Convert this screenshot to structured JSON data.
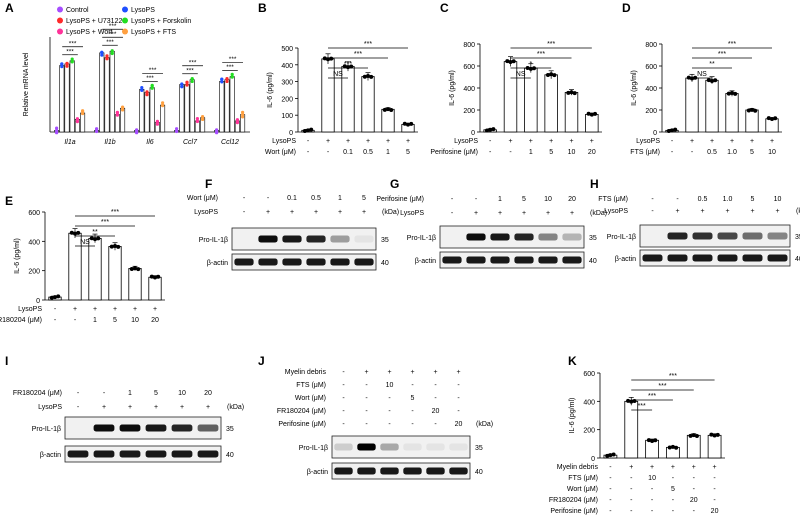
{
  "figure": {
    "panel_letters": [
      "A",
      "B",
      "C",
      "D",
      "E",
      "F",
      "G",
      "H",
      "I",
      "J",
      "K"
    ],
    "colors": {
      "black": "#000000",
      "bar_fill": "#ffffff"
    }
  },
  "panel_A": {
    "legend": [
      {
        "label": "Control",
        "color": "#a64dff"
      },
      {
        "label": "LysoPS",
        "color": "#1f4fff"
      },
      {
        "label": "LysoPS + U73122",
        "color": "#ff2a2a"
      },
      {
        "label": "LysoPS + Forskolin",
        "color": "#22dd22"
      },
      {
        "label": "LysoPS + Wort",
        "color": "#ff3399"
      },
      {
        "label": "LysoPS + FTS",
        "color": "#ffa040"
      }
    ],
    "sig": "***"
  },
  "blots": {
    "F": {
      "rows": [
        {
          "label": "Wort (μM)",
          "values": [
            "-",
            "-",
            "0.1",
            "0.5",
            "1",
            "5"
          ]
        },
        {
          "label": "LysoPS",
          "values": [
            "-",
            "+",
            "+",
            "+",
            "+",
            "+"
          ]
        }
      ],
      "bands": [
        "Pro-IL-1β",
        "β-actin"
      ],
      "kda_header": "(kDa)",
      "markers": [
        "35",
        "40"
      ]
    },
    "G": {
      "rows": [
        {
          "label": "Perifosine (μM)",
          "values": [
            "-",
            "-",
            "1",
            "5",
            "10",
            "20"
          ]
        },
        {
          "label": "LysoPS",
          "values": [
            "-",
            "+",
            "+",
            "+",
            "+",
            "+"
          ]
        }
      ],
      "bands": [
        "Pro-IL-1β",
        "β-actin"
      ],
      "kda_header": "(kDa)",
      "markers": [
        "35",
        "40"
      ]
    },
    "H": {
      "rows": [
        {
          "label": "FTS (μM)",
          "values": [
            "-",
            "-",
            "0.5",
            "1.0",
            "5",
            "10"
          ]
        },
        {
          "label": "LysoPS",
          "values": [
            "-",
            "+",
            "+",
            "+",
            "+",
            "+"
          ]
        }
      ],
      "bands": [
        "Pro-IL-1β",
        "β-actin"
      ],
      "kda_header": "(kDa)",
      "markers": [
        "35",
        "40"
      ]
    },
    "I": {
      "rows": [
        {
          "label": "FR180204 (μM)",
          "values": [
            "-",
            "-",
            "1",
            "5",
            "10",
            "20"
          ]
        },
        {
          "label": "LysoPS",
          "values": [
            "-",
            "+",
            "+",
            "+",
            "+",
            "+"
          ]
        }
      ],
      "bands": [
        "Pro-IL-1β",
        "β-actin"
      ],
      "kda_header": "(kDa)",
      "markers": [
        "35",
        "40"
      ]
    },
    "J": {
      "rows": [
        {
          "label": "Myelin debris",
          "values": [
            "-",
            "+",
            "+",
            "+",
            "+",
            "+"
          ]
        },
        {
          "label": "FTS (μM)",
          "values": [
            "-",
            "-",
            "10",
            "-",
            "-",
            "-"
          ]
        },
        {
          "label": "Wort (μM)",
          "values": [
            "-",
            "-",
            "-",
            "5",
            "-",
            "-"
          ]
        },
        {
          "label": "FR180204 (μM)",
          "values": [
            "-",
            "-",
            "-",
            "-",
            "20",
            "-"
          ]
        },
        {
          "label": "Perifosine (μM)",
          "values": [
            "-",
            "-",
            "-",
            "-",
            "-",
            "20"
          ]
        }
      ],
      "bands": [
        "Pro-IL-1β",
        "β-actin"
      ],
      "kda_header": "(kDa)",
      "markers": [
        "35",
        "40"
      ]
    }
  },
  "chart_data": [
    {
      "panel": "A",
      "type": "bar",
      "ylabel": "Relative mRNA level",
      "categories": [
        "Il1a",
        "Il1b",
        "Il6",
        "Ccl7",
        "Ccl12"
      ],
      "series": [
        {
          "name": "Control",
          "values": [
            1,
            1,
            1,
            1,
            1
          ]
        },
        {
          "name": "LysoPS",
          "values": [
            42,
            50,
            27,
            30,
            32
          ]
        },
        {
          "name": "LysoPS + U73122",
          "values": [
            43,
            47,
            25,
            30,
            33
          ]
        },
        {
          "name": "LysoPS + Forskolin",
          "values": [
            45,
            51,
            28,
            33,
            35
          ]
        },
        {
          "name": "LysoPS + Wort",
          "values": [
            8,
            11,
            6,
            7,
            7
          ]
        },
        {
          "name": "LysoPS + FTS",
          "values": [
            12,
            15,
            17,
            9,
            11
          ]
        }
      ],
      "significance": [
        {
          "category": "Il1a",
          "labels": [
            "***",
            "***"
          ]
        },
        {
          "category": "Il1b",
          "labels": [
            "***",
            "***",
            "***"
          ]
        },
        {
          "category": "Il6",
          "labels": [
            "***",
            "***"
          ]
        },
        {
          "category": "Ccl7",
          "labels": [
            "***",
            "***"
          ]
        },
        {
          "category": "Ccl12",
          "labels": [
            "***",
            "***"
          ]
        }
      ]
    },
    {
      "panel": "B",
      "type": "bar",
      "ylabel": "IL-6 (pg/ml)",
      "ylim": [
        0,
        500
      ],
      "yticks": [
        0,
        100,
        200,
        300,
        400,
        500
      ],
      "condition_rows": [
        {
          "label": "LysoPS",
          "values": [
            "-",
            "+",
            "+",
            "+",
            "+",
            "+"
          ]
        },
        {
          "label": "Wort (μM)",
          "values": [
            "-",
            "-",
            "0.1",
            "0.5",
            "1",
            "5"
          ]
        }
      ],
      "values": [
        10,
        435,
        390,
        330,
        135,
        45
      ],
      "significance": [
        {
          "from": 1,
          "to": 2,
          "label": "NS"
        },
        {
          "from": 1,
          "to": 3,
          "label": "***"
        },
        {
          "from": 1,
          "to": 4,
          "label": "***"
        },
        {
          "from": 1,
          "to": 5,
          "label": "***"
        }
      ]
    },
    {
      "panel": "C",
      "type": "bar",
      "ylabel": "IL-6 (pg/ml)",
      "ylim": [
        0,
        800
      ],
      "yticks": [
        0,
        200,
        400,
        600,
        800
      ],
      "condition_rows": [
        {
          "label": "LysoPS",
          "values": [
            "-",
            "+",
            "+",
            "+",
            "+",
            "+"
          ]
        },
        {
          "label": "Perifosine (μM)",
          "values": [
            "-",
            "-",
            "1",
            "5",
            "10",
            "20"
          ]
        }
      ],
      "values": [
        20,
        640,
        580,
        520,
        360,
        160
      ],
      "significance": [
        {
          "from": 1,
          "to": 2,
          "label": "NS"
        },
        {
          "from": 1,
          "to": 3,
          "label": "*"
        },
        {
          "from": 1,
          "to": 4,
          "label": "***"
        },
        {
          "from": 1,
          "to": 5,
          "label": "***"
        }
      ]
    },
    {
      "panel": "D",
      "type": "bar",
      "ylabel": "IL-6 (pg/ml)",
      "ylim": [
        0,
        800
      ],
      "yticks": [
        0,
        200,
        400,
        600,
        800
      ],
      "condition_rows": [
        {
          "label": "LysoPS",
          "values": [
            "-",
            "+",
            "+",
            "+",
            "+",
            "+"
          ]
        },
        {
          "label": "FTS (μM)",
          "values": [
            "-",
            "-",
            "0.5",
            "1.0",
            "5",
            "10"
          ]
        }
      ],
      "values": [
        15,
        490,
        470,
        350,
        200,
        120
      ],
      "significance": [
        {
          "from": 1,
          "to": 2,
          "label": "NS"
        },
        {
          "from": 1,
          "to": 3,
          "label": "**"
        },
        {
          "from": 1,
          "to": 4,
          "label": "***"
        },
        {
          "from": 1,
          "to": 5,
          "label": "***"
        }
      ]
    },
    {
      "panel": "E",
      "type": "bar",
      "ylabel": "IL-6 (pg/ml)",
      "ylim": [
        0,
        600
      ],
      "yticks": [
        0,
        200,
        400,
        600
      ],
      "condition_rows": [
        {
          "label": "LysoPS",
          "values": [
            "-",
            "+",
            "+",
            "+",
            "+",
            "+"
          ]
        },
        {
          "label": "FR180204 (μM)",
          "values": [
            "-",
            "-",
            "1",
            "5",
            "10",
            "20"
          ]
        }
      ],
      "values": [
        20,
        455,
        420,
        365,
        215,
        155
      ],
      "significance": [
        {
          "from": 1,
          "to": 2,
          "label": "NS"
        },
        {
          "from": 1,
          "to": 3,
          "label": "**"
        },
        {
          "from": 1,
          "to": 4,
          "label": "***"
        },
        {
          "from": 1,
          "to": 5,
          "label": "***"
        }
      ]
    },
    {
      "panel": "K",
      "type": "bar",
      "ylabel": "IL-6 (pg/ml)",
      "ylim": [
        0,
        600
      ],
      "yticks": [
        0,
        200,
        400,
        600
      ],
      "condition_rows": [
        {
          "label": "Myelin debris",
          "values": [
            "-",
            "+",
            "+",
            "+",
            "+",
            "+"
          ]
        },
        {
          "label": "FTS (μM)",
          "values": [
            "-",
            "-",
            "10",
            "-",
            "-",
            "-"
          ]
        },
        {
          "label": "Wort (μM)",
          "values": [
            "-",
            "-",
            "-",
            "5",
            "-",
            "-"
          ]
        },
        {
          "label": "FR180204 (μM)",
          "values": [
            "-",
            "-",
            "-",
            "-",
            "20",
            "-"
          ]
        },
        {
          "label": "Perifosine (μM)",
          "values": [
            "-",
            "-",
            "-",
            "-",
            "-",
            "20"
          ]
        }
      ],
      "values": [
        20,
        400,
        125,
        75,
        160,
        160
      ],
      "significance": [
        {
          "from": 1,
          "to": 2,
          "label": "***"
        },
        {
          "from": 1,
          "to": 3,
          "label": "***"
        },
        {
          "from": 1,
          "to": 4,
          "label": "***"
        },
        {
          "from": 1,
          "to": 5,
          "label": "***"
        }
      ]
    }
  ]
}
